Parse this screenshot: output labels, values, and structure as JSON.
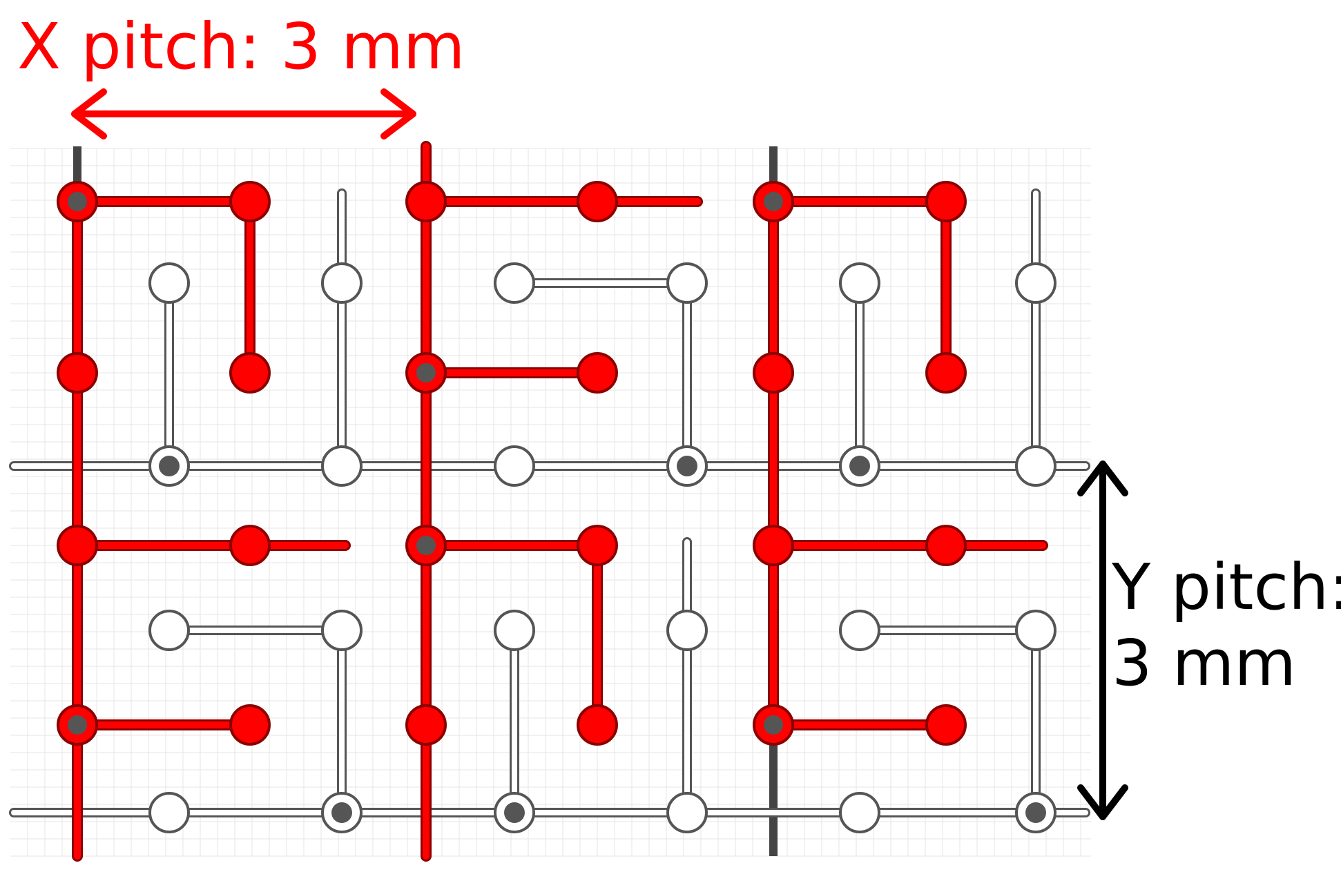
{
  "labels": {
    "x_pitch": "X pitch: 3 mm",
    "y_pitch_line1": "Y pitch:",
    "y_pitch_line2": "3 mm"
  },
  "colors": {
    "x_pitch": "#ff0000",
    "y_pitch": "#000000",
    "red_layer": "#ff0000",
    "red_outline": "#8b0000",
    "white_layer": "#ffffff",
    "white_outline": "#555555",
    "dark_line": "#444444",
    "via_core": "#555555",
    "grid": "#e6e6e6"
  },
  "icons": {
    "x_arrow": "double-headed-horizontal-arrow",
    "y_arrow": "double-headed-vertical-arrow"
  }
}
